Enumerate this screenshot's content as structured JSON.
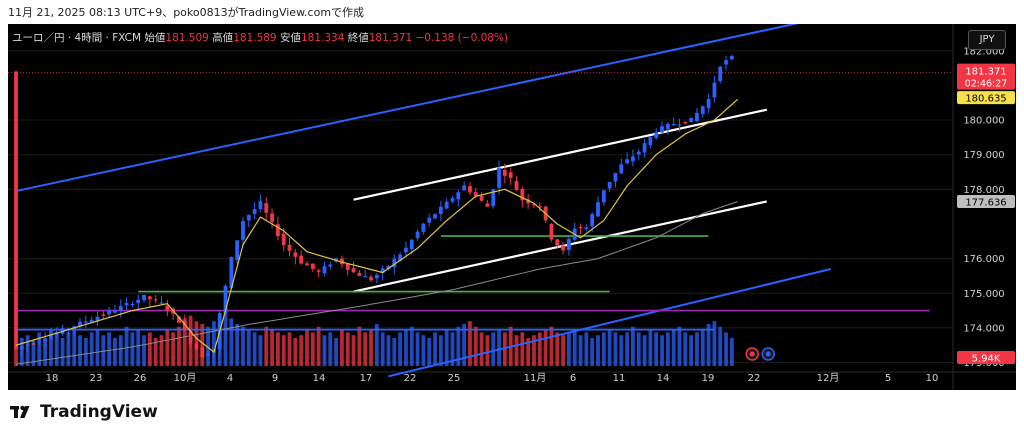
{
  "caption": "11月 21, 2025 08:13 UTC+9、poko0813がTradingView.comで作成",
  "header": {
    "symbol": "ユーロ／円 · 4時間 · FXCM",
    "open_label": "始値",
    "open": "181.509",
    "high_label": "高値",
    "high": "181.589",
    "low_label": "安値",
    "low": "181.334",
    "close_label": "終値",
    "close": "181.371",
    "change": "−0.138 (−0.08%)"
  },
  "currency_button": "JPY",
  "brand": "TradingView",
  "colors": {
    "background": "#000000",
    "up": "#2962ff",
    "down": "#f23645",
    "channel_outer": "#2962ff",
    "channel_inner": "#ffffff",
    "support": "#4caf50",
    "purple_line": "#9c27b0",
    "blue_hline": "#2962ff",
    "ma_fast": "#e0c341",
    "ma_slow": "#8a8a8a"
  },
  "chart_data": {
    "type": "candlestick",
    "ylim": [
      172.9,
      182.6
    ],
    "x_tick_labels": [
      "18",
      "23",
      "26",
      "10月",
      "4",
      "9",
      "14",
      "17",
      "22",
      "25",
      "11月",
      "6",
      "11",
      "14",
      "19",
      "22",
      "12月",
      "5",
      "10"
    ],
    "y_tick_labels": [
      "182.000",
      "180.000",
      "179.000",
      "178.000",
      "176.000",
      "175.000",
      "174.000",
      "173.000"
    ],
    "price_labels": [
      {
        "text": "181.371",
        "value": 181.371,
        "kind": "last"
      },
      {
        "text": "02:46:27",
        "value": 181.371,
        "kind": "countdown"
      },
      {
        "text": "180.635",
        "value": 180.635,
        "kind": "ma"
      },
      {
        "text": "177.636",
        "value": 177.636,
        "kind": "ma"
      },
      {
        "text": "5.94K",
        "value": 5940,
        "kind": "volume"
      }
    ],
    "price_path": [
      [
        0,
        173.4
      ],
      [
        6,
        173.8
      ],
      [
        12,
        174.2
      ],
      [
        18,
        174.6
      ],
      [
        22,
        174.9
      ],
      [
        25,
        174.7
      ],
      [
        28,
        174.2
      ],
      [
        30,
        173.6
      ],
      [
        32,
        173.2
      ],
      [
        34,
        173.4
      ],
      [
        35,
        174.4
      ],
      [
        37,
        176.0
      ],
      [
        39,
        177.1
      ],
      [
        42,
        177.6
      ],
      [
        44,
        177.0
      ],
      [
        46,
        176.4
      ],
      [
        49,
        175.9
      ],
      [
        52,
        175.6
      ],
      [
        55,
        176.0
      ],
      [
        58,
        175.6
      ],
      [
        61,
        175.4
      ],
      [
        64,
        175.8
      ],
      [
        67,
        176.3
      ],
      [
        70,
        177.0
      ],
      [
        74,
        177.6
      ],
      [
        77,
        178.1
      ],
      [
        79,
        177.8
      ],
      [
        81,
        177.5
      ],
      [
        83,
        178.6
      ],
      [
        85,
        178.3
      ],
      [
        87,
        177.7
      ],
      [
        90,
        177.5
      ],
      [
        92,
        176.6
      ],
      [
        94,
        176.2
      ],
      [
        96,
        176.9
      ],
      [
        98,
        176.9
      ],
      [
        101,
        178.0
      ],
      [
        104,
        178.7
      ],
      [
        107,
        179.1
      ],
      [
        110,
        179.7
      ],
      [
        113,
        179.9
      ],
      [
        116,
        180.0
      ],
      [
        119,
        180.6
      ],
      [
        121,
        181.6
      ],
      [
        123,
        181.8
      ],
      [
        124,
        181.4
      ]
    ],
    "volume": [
      0.4,
      0.5,
      0.55,
      0.45,
      0.6,
      0.5,
      0.65,
      0.55,
      0.5,
      0.6,
      0.7,
      0.55,
      0.5,
      0.6,
      0.65,
      0.55,
      0.6,
      0.5,
      0.55,
      0.7,
      0.6,
      0.65,
      0.55,
      0.6,
      0.5,
      0.55,
      0.65,
      0.6,
      0.7,
      0.85,
      0.9,
      0.8,
      0.75,
      0.7,
      0.8,
      0.9,
      0.95,
      0.85,
      0.75,
      0.7,
      0.65,
      0.6,
      0.55,
      0.7,
      0.65,
      0.6,
      0.55,
      0.6,
      0.5,
      0.55,
      0.65,
      0.6,
      0.7,
      0.55,
      0.6,
      0.5,
      0.65,
      0.6,
      0.55,
      0.7,
      0.6,
      0.65,
      0.75,
      0.6,
      0.55,
      0.5,
      0.6,
      0.65,
      0.7,
      0.6,
      0.55,
      0.5,
      0.6,
      0.55,
      0.65,
      0.6,
      0.7,
      0.75,
      0.8,
      0.7,
      0.6,
      0.55,
      0.6,
      0.65,
      0.6,
      0.7,
      0.55,
      0.6,
      0.5,
      0.55,
      0.6,
      0.65,
      0.7,
      0.6,
      0.55,
      0.6,
      0.65,
      0.55,
      0.6,
      0.5,
      0.55,
      0.6,
      0.65,
      0.6,
      0.55,
      0.6,
      0.7,
      0.6,
      0.55,
      0.65,
      0.6,
      0.55,
      0.6,
      0.65,
      0.7,
      0.6,
      0.55,
      0.6,
      0.65,
      0.75,
      0.8,
      0.7,
      0.6,
      0.5
    ],
    "ma_fast": [
      [
        0,
        173.5
      ],
      [
        20,
        174.5
      ],
      [
        26,
        174.7
      ],
      [
        31,
        173.7
      ],
      [
        34,
        173.3
      ],
      [
        36,
        174.5
      ],
      [
        39,
        176.4
      ],
      [
        42,
        177.2
      ],
      [
        46,
        176.8
      ],
      [
        50,
        176.2
      ],
      [
        56,
        175.9
      ],
      [
        63,
        175.6
      ],
      [
        69,
        176.3
      ],
      [
        74,
        177.1
      ],
      [
        79,
        177.8
      ],
      [
        84,
        178.0
      ],
      [
        89,
        177.6
      ],
      [
        93,
        177.0
      ],
      [
        97,
        176.6
      ],
      [
        101,
        177.1
      ],
      [
        105,
        178.1
      ],
      [
        110,
        179.0
      ],
      [
        115,
        179.6
      ],
      [
        120,
        180.0
      ],
      [
        124,
        180.6
      ]
    ],
    "ma_slow": [
      [
        0,
        172.95
      ],
      [
        20,
        173.45
      ],
      [
        40,
        174.1
      ],
      [
        60,
        174.65
      ],
      [
        75,
        175.1
      ],
      [
        90,
        175.7
      ],
      [
        100,
        176.0
      ],
      [
        110,
        176.6
      ],
      [
        118,
        177.3
      ],
      [
        124,
        177.65
      ]
    ],
    "drawn_lines": [
      {
        "kind": "channel-outer-top",
        "x": [
          0,
          140
        ],
        "y": [
          177.95,
          183.0
        ]
      },
      {
        "kind": "channel-outer-bottom",
        "x": [
          64,
          140
        ],
        "y": [
          172.6,
          175.7
        ]
      },
      {
        "kind": "channel-inner-top",
        "x": [
          58,
          129
        ],
        "y": [
          177.7,
          180.3
        ]
      },
      {
        "kind": "channel-inner-bottom",
        "x": [
          58,
          129
        ],
        "y": [
          175.05,
          177.65
        ]
      },
      {
        "kind": "support-upper",
        "x": [
          73,
          119
        ],
        "y": [
          176.65,
          176.65
        ]
      },
      {
        "kind": "support-lower",
        "x": [
          21,
          102
        ],
        "y": [
          175.05,
          175.05
        ]
      },
      {
        "kind": "purple",
        "x": [
          0,
          157
        ],
        "y": [
          174.5,
          174.5
        ]
      },
      {
        "kind": "blue-horizontal",
        "x": [
          0,
          120
        ],
        "y": [
          173.95,
          173.95
        ]
      }
    ]
  }
}
